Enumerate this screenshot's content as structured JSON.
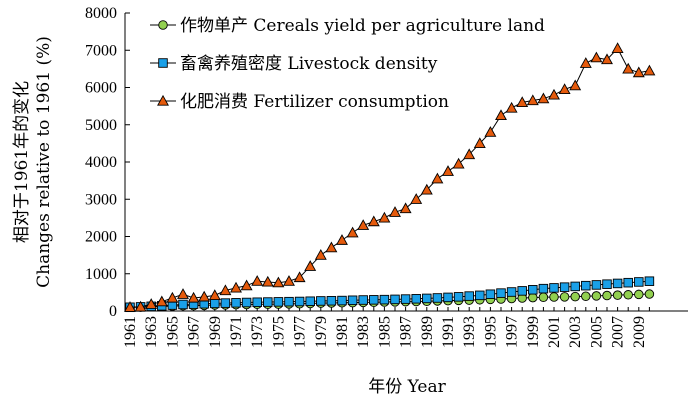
{
  "chart_data": {
    "type": "line",
    "title": "",
    "xlabel": "年份 Year",
    "ylabel_cn": "相对于1961年的变化",
    "ylabel_en": "Changes relative to 1961 (%)",
    "xlim": [
      1961,
      2010
    ],
    "ylim": [
      0,
      8000
    ],
    "y_ticks": [
      "0",
      "1000",
      "2000",
      "3000",
      "4000",
      "5000",
      "6000",
      "7000",
      "8000"
    ],
    "x_tick_labels": [
      "1961",
      "1963",
      "1965",
      "1967",
      "1969",
      "1971",
      "1973",
      "1975",
      "1977",
      "1979",
      "1981",
      "1983",
      "1985",
      "1987",
      "1989",
      "1991",
      "1993",
      "1995",
      "1997",
      "1999",
      "2001",
      "2003",
      "2005",
      "2007",
      "2009"
    ],
    "grid": false,
    "legend_position": "top-left",
    "x": [
      1961,
      1962,
      1963,
      1964,
      1965,
      1966,
      1967,
      1968,
      1969,
      1970,
      1971,
      1972,
      1973,
      1974,
      1975,
      1976,
      1977,
      1978,
      1979,
      1980,
      1981,
      1982,
      1983,
      1984,
      1985,
      1986,
      1987,
      1988,
      1989,
      1990,
      1991,
      1992,
      1993,
      1994,
      1995,
      1996,
      1997,
      1998,
      1999,
      2000,
      2001,
      2002,
      2003,
      2004,
      2005,
      2006,
      2007,
      2008,
      2009,
      2010
    ],
    "series": [
      {
        "name": "作物单产 Cereals yield per agriculture land",
        "marker": "circle",
        "color": "#92d050",
        "values": [
          100,
          105,
          115,
          125,
          130,
          140,
          145,
          150,
          160,
          165,
          170,
          175,
          180,
          182,
          185,
          190,
          195,
          200,
          210,
          215,
          220,
          225,
          230,
          235,
          240,
          245,
          250,
          255,
          262,
          270,
          278,
          285,
          292,
          300,
          312,
          322,
          335,
          348,
          360,
          370,
          375,
          380,
          385,
          395,
          405,
          415,
          425,
          435,
          445,
          455
        ]
      },
      {
        "name": "畜禽养殖密度 Livestock density",
        "marker": "square",
        "color": "#1aa0e8",
        "values": [
          100,
          110,
          125,
          140,
          160,
          175,
          185,
          195,
          205,
          212,
          220,
          228,
          235,
          240,
          245,
          250,
          255,
          262,
          270,
          275,
          280,
          288,
          295,
          300,
          305,
          312,
          320,
          328,
          338,
          350,
          365,
          380,
          400,
          420,
          450,
          480,
          510,
          540,
          570,
          600,
          620,
          640,
          660,
          680,
          700,
          720,
          740,
          760,
          780,
          800
        ]
      },
      {
        "name": "化肥消费 Fertilizer consumption",
        "marker": "triangle",
        "color": "#e55a0c",
        "values": [
          100,
          110,
          180,
          250,
          350,
          450,
          350,
          380,
          420,
          550,
          620,
          680,
          800,
          780,
          760,
          800,
          900,
          1200,
          1500,
          1700,
          1900,
          2100,
          2300,
          2400,
          2500,
          2650,
          2750,
          3000,
          3250,
          3550,
          3750,
          3950,
          4200,
          4500,
          4800,
          5250,
          5450,
          5600,
          5650,
          5700,
          5800,
          5950,
          6050,
          6650,
          6800,
          6750,
          7050,
          6500,
          6400,
          6450
        ]
      }
    ]
  }
}
